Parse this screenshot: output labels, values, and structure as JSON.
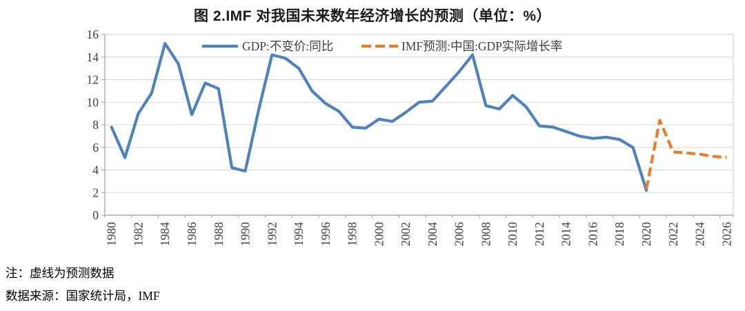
{
  "title": "图 2.IMF 对我国未来数年经济增长的预测（单位：%）",
  "notes": {
    "line1": "注：虚线为预测数据",
    "line2": "数据来源：国家统计局，IMF"
  },
  "chart_data": {
    "type": "line",
    "title": "图 2.IMF 对我国未来数年经济增长的预测（单位：%）",
    "unit": "%",
    "ylim": [
      0,
      16
    ],
    "yticks": [
      0,
      2,
      4,
      6,
      8,
      10,
      12,
      14,
      16
    ],
    "xtick_labels": [
      "1980",
      "1982",
      "1984",
      "1986",
      "1988",
      "1990",
      "1992",
      "1994",
      "1996",
      "1998",
      "2000",
      "2002",
      "2004",
      "2006",
      "2008",
      "2010",
      "2012",
      "2014",
      "2016",
      "2018",
      "2020",
      "2022",
      "2024",
      "2026"
    ],
    "x_range": [
      1980,
      2026
    ],
    "grid": "horizontal",
    "legend_position": "top-center-inside",
    "colors": {
      "gridline": "#D9D9D9",
      "plot_border": "#C9C9C9",
      "axis_line": "#9E9E9E",
      "tick_label": "#3E3E3E"
    },
    "series": [
      {
        "name": "GDP:不变价:同比",
        "style": "solid",
        "color": "#4F81BD",
        "x": [
          1980,
          1981,
          1982,
          1983,
          1984,
          1985,
          1986,
          1987,
          1988,
          1989,
          1990,
          1991,
          1992,
          1993,
          1994,
          1995,
          1996,
          1997,
          1998,
          1999,
          2000,
          2001,
          2002,
          2003,
          2004,
          2005,
          2006,
          2007,
          2008,
          2009,
          2010,
          2011,
          2012,
          2013,
          2014,
          2015,
          2016,
          2017,
          2018,
          2019,
          2020
        ],
        "values": [
          7.8,
          5.1,
          9.0,
          10.8,
          15.2,
          13.4,
          8.9,
          11.7,
          11.2,
          4.2,
          3.9,
          9.3,
          14.2,
          13.9,
          13.0,
          11.0,
          9.9,
          9.2,
          7.8,
          7.7,
          8.5,
          8.3,
          9.1,
          10.0,
          10.1,
          11.4,
          12.7,
          14.2,
          9.7,
          9.4,
          10.6,
          9.6,
          7.9,
          7.8,
          7.4,
          7.0,
          6.8,
          6.9,
          6.7,
          6.0,
          2.2
        ]
      },
      {
        "name": "IMF预测:中国:GDP实际增长率",
        "style": "dashed",
        "color": "#E87D2E",
        "x": [
          2020,
          2021,
          2022,
          2023,
          2024,
          2025,
          2026
        ],
        "values": [
          2.3,
          8.4,
          5.6,
          5.5,
          5.4,
          5.2,
          5.1
        ]
      }
    ]
  }
}
